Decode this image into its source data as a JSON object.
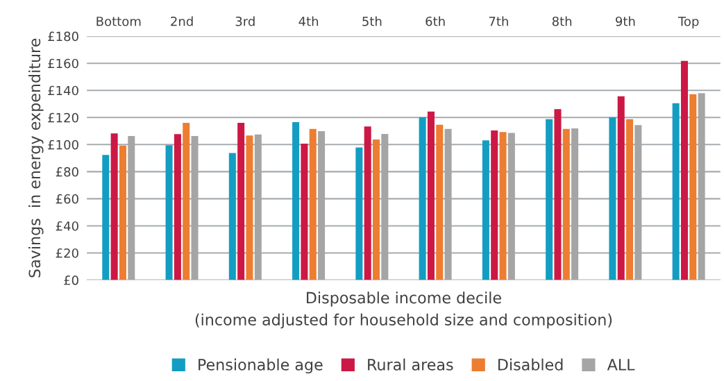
{
  "chart_data": {
    "type": "bar",
    "xlabel": "Disposable income decile\n(income adjusted for household size and composition)",
    "ylabel": "Savings  in energy expenditure",
    "categories": [
      "Bottom",
      "2nd",
      "3rd",
      "4th",
      "5th",
      "6th",
      "7th",
      "8th",
      "9th",
      "Top"
    ],
    "series": [
      {
        "name": "Pensionable age",
        "color": "#139dc2",
        "values": [
          92.4,
          99.5,
          93.8,
          116.5,
          97.9,
          120.2,
          103.1,
          118.7,
          120.2,
          130.5
        ]
      },
      {
        "name": "Rural areas",
        "color": "#cc1845",
        "values": [
          108.2,
          107.7,
          116.1,
          100.7,
          113.4,
          124.4,
          110.4,
          126.2,
          135.7,
          161.8
        ]
      },
      {
        "name": "Disabled",
        "color": "#ed7d31",
        "values": [
          99.3,
          116.1,
          106.7,
          111.6,
          103.7,
          114.6,
          109.2,
          111.6,
          118.7,
          137.2
        ]
      },
      {
        "name": "ALL",
        "color": "#a5a5a5",
        "values": [
          106.3,
          106.3,
          107.5,
          109.9,
          107.9,
          111.5,
          108.6,
          112.0,
          114.4,
          137.9
        ]
      }
    ],
    "ylim": [
      0,
      180
    ],
    "yticks": [
      {
        "value": 0,
        "label": "£0"
      },
      {
        "value": 20,
        "label": "£20"
      },
      {
        "value": 40,
        "label": "£40"
      },
      {
        "value": 60,
        "label": "£60"
      },
      {
        "value": 80,
        "label": "£80"
      },
      {
        "value": 100,
        "label": "£100"
      },
      {
        "value": 120,
        "label": "£120"
      },
      {
        "value": 140,
        "label": "£140"
      },
      {
        "value": 160,
        "label": "£160"
      },
      {
        "value": 180,
        "label": "£180"
      }
    ],
    "grid": "y",
    "legend": "bottom"
  }
}
